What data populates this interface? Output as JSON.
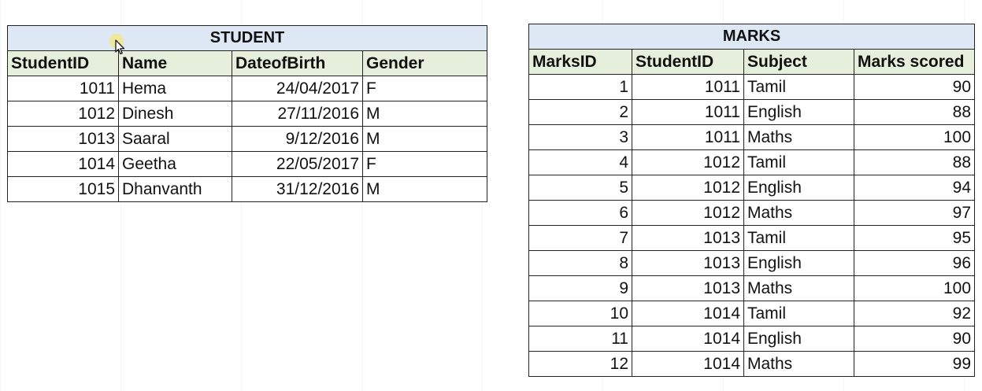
{
  "student": {
    "title": "STUDENT",
    "headers": [
      "StudentID",
      "Name",
      "DateofBirth",
      "Gender"
    ],
    "rows": [
      [
        "1011",
        "Hema",
        "24/04/2017",
        "F"
      ],
      [
        "1012",
        "Dinesh",
        "27/11/2016",
        "M"
      ],
      [
        "1013",
        "Saaral",
        "9/12/2016",
        "M"
      ],
      [
        "1014",
        "Geetha",
        "22/05/2017",
        "F"
      ],
      [
        "1015",
        "Dhanvanth",
        "31/12/2016",
        "M"
      ]
    ]
  },
  "marks": {
    "title": "MARKS",
    "headers": [
      "MarksID",
      "StudentID",
      "Subject",
      "Marks scored"
    ],
    "rows": [
      [
        "1",
        "1011",
        "Tamil",
        "90"
      ],
      [
        "2",
        "1011",
        "English",
        "88"
      ],
      [
        "3",
        "1011",
        "Maths",
        "100"
      ],
      [
        "4",
        "1012",
        "Tamil",
        "88"
      ],
      [
        "5",
        "1012",
        "English",
        "94"
      ],
      [
        "6",
        "1012",
        "Maths",
        "97"
      ],
      [
        "7",
        "1013",
        "Tamil",
        "95"
      ],
      [
        "8",
        "1013",
        "English",
        "96"
      ],
      [
        "9",
        "1013",
        "Maths",
        "100"
      ],
      [
        "10",
        "1014",
        "Tamil",
        "92"
      ],
      [
        "11",
        "1014",
        "English",
        "90"
      ],
      [
        "12",
        "1014",
        "Maths",
        "99"
      ]
    ]
  },
  "colors": {
    "title_fill": "#dde8f4",
    "header_fill": "#e6efdc",
    "border": "#222222"
  },
  "icons": {
    "cursor": "mouse-pointer-icon"
  }
}
